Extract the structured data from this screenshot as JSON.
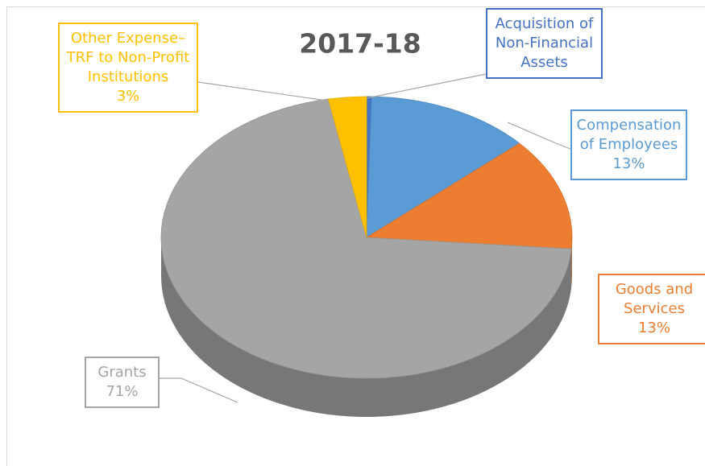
{
  "chart_data": {
    "type": "pie3d",
    "title": "2017-18",
    "categories": [
      "Acquisition of Non-Financial Assets",
      "Compensation of Employees",
      "Goods and Services",
      "Grants",
      "Other Expense– TRF to Non-Profit Institutions"
    ],
    "values": [
      0.4,
      13,
      13,
      71,
      3
    ],
    "value_labels": [
      null,
      "13%",
      "13%",
      "71%",
      "3%"
    ],
    "colors": [
      "#4472c4",
      "#5b9bd5",
      "#ed7d31",
      "#a5a5a5",
      "#ffc000"
    ]
  }
}
